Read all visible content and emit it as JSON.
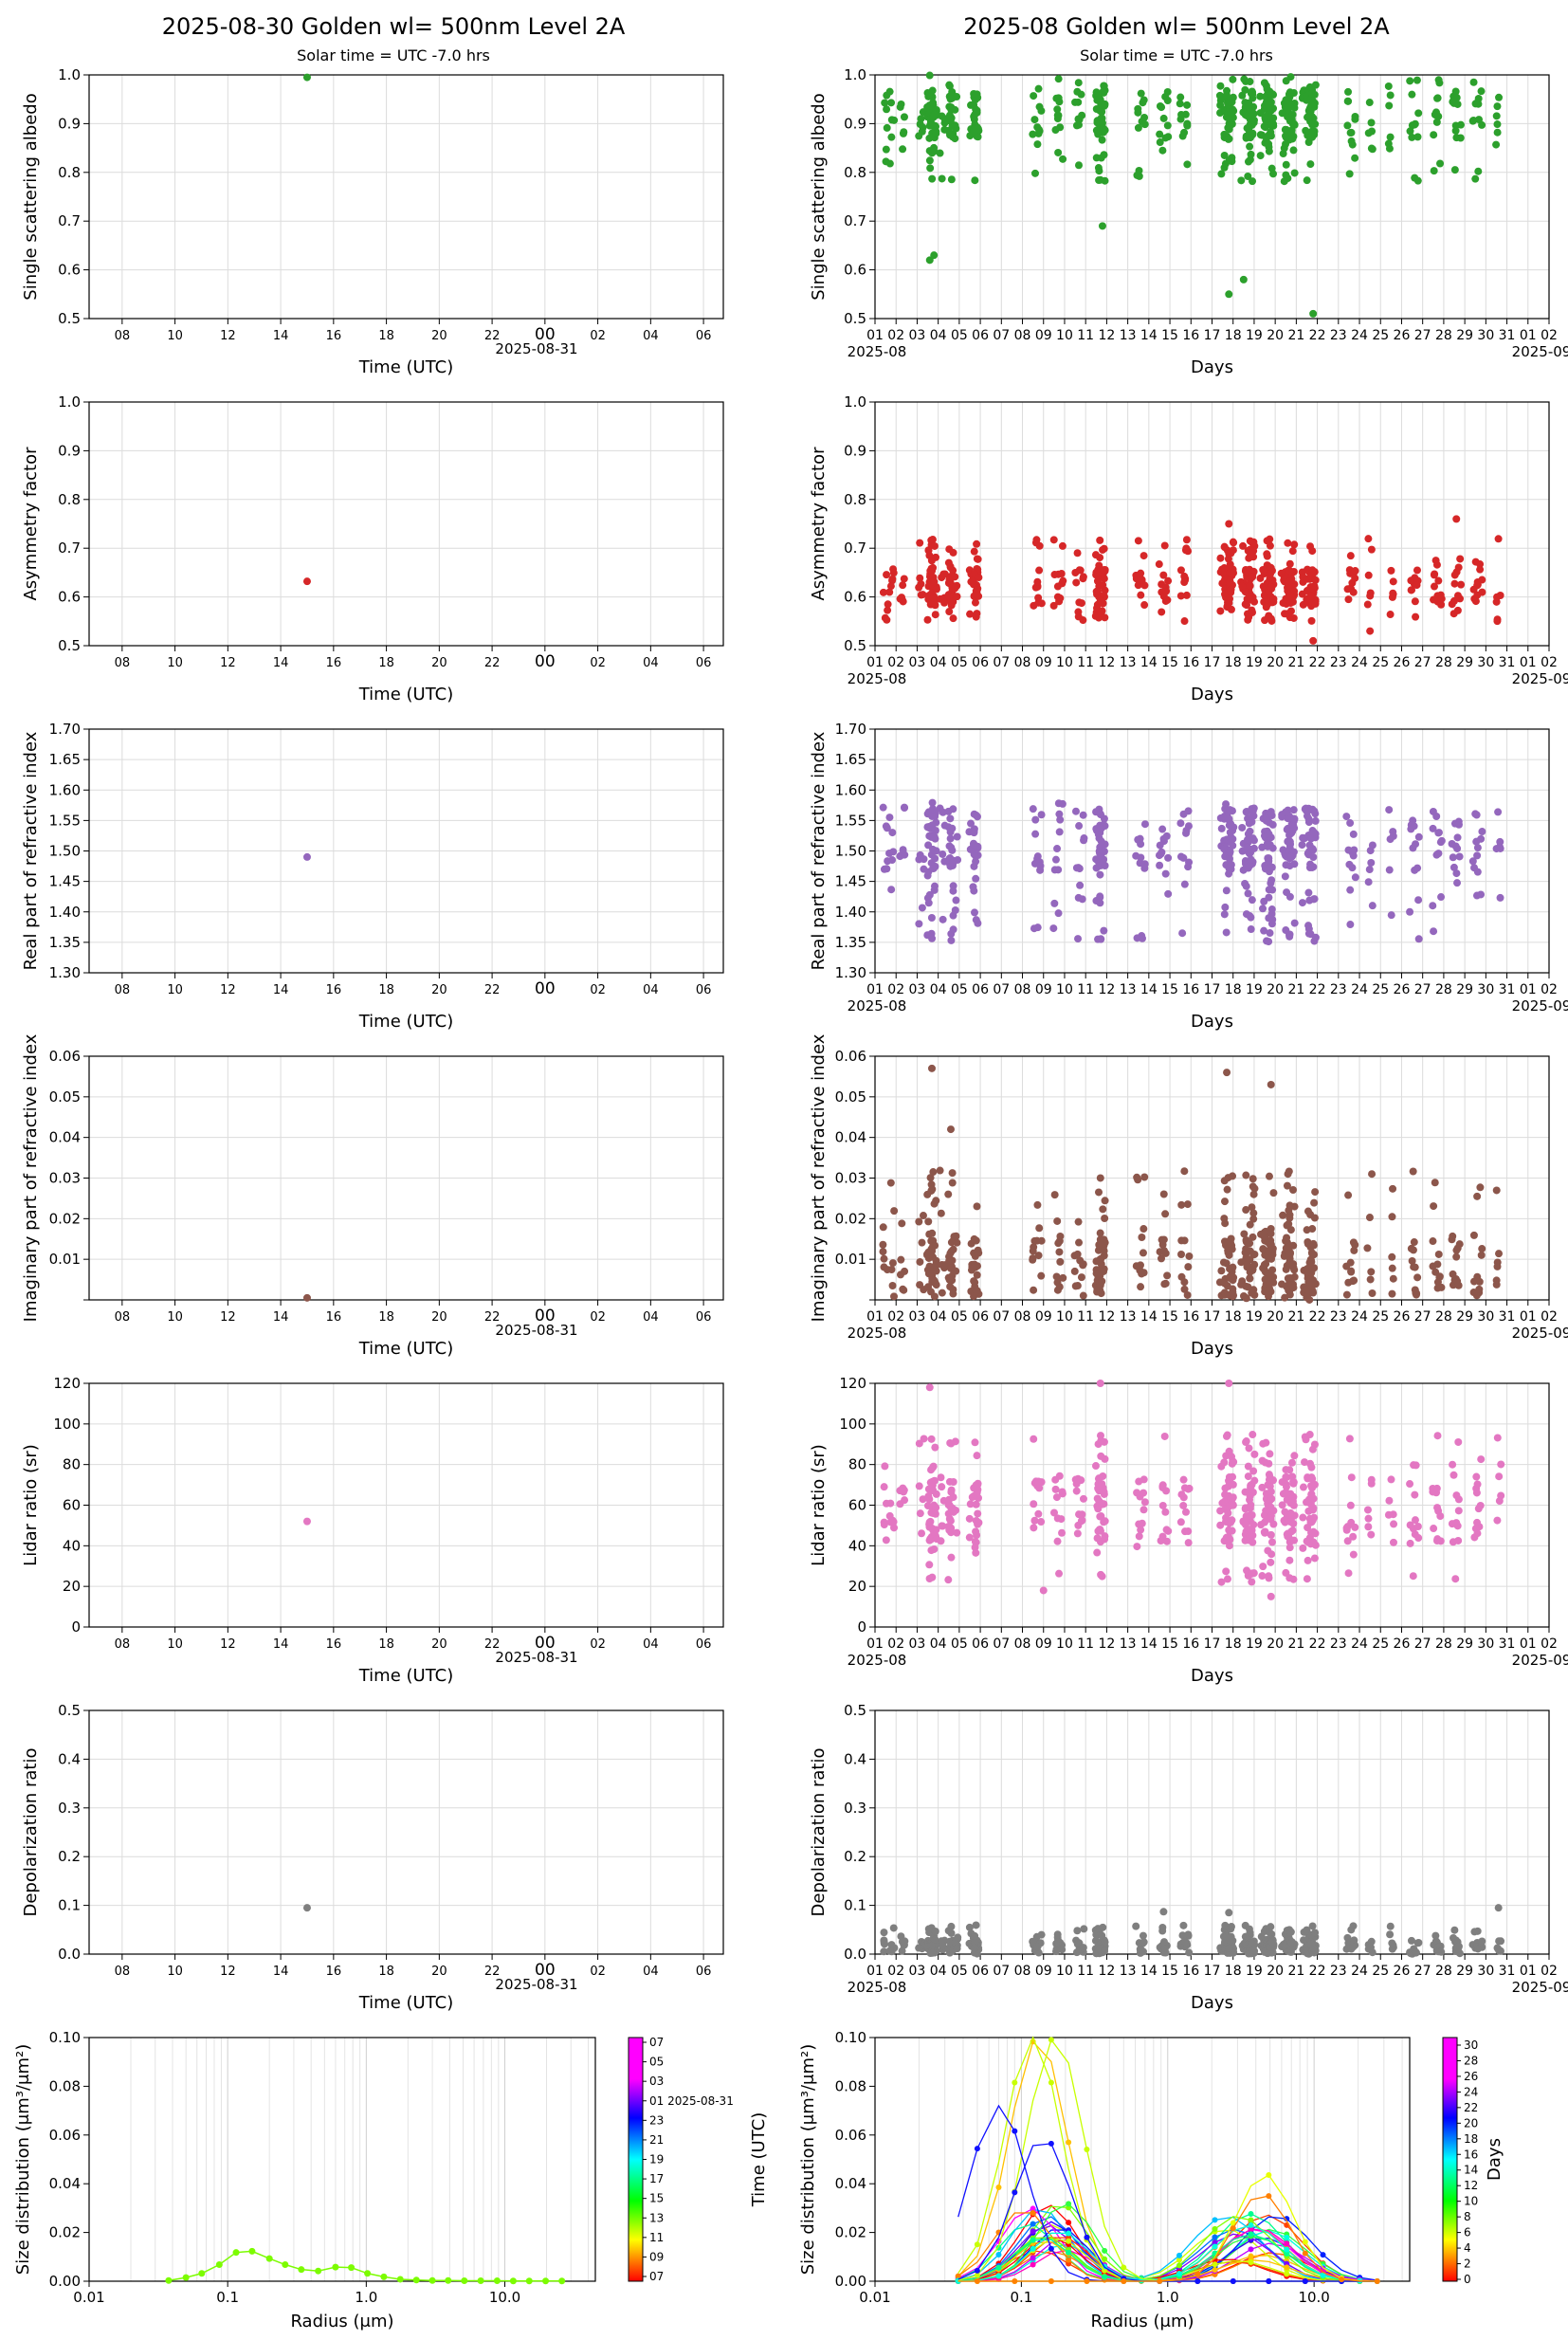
{
  "left_title": "2025-08-30  Golden  wl= 500nm  Level 2A",
  "right_title": "2025-08  Golden  wl= 500nm  Level 2A",
  "subtitle": "Solar time = UTC -7.0 hrs",
  "left_xlabel": "Time (UTC)",
  "right_xlabel": "Days",
  "left_date_label": "2025-08-31",
  "right_start_label": "2025-08",
  "right_end_label": "2025-09",
  "left_hour_ticks": [
    "08",
    "10",
    "12",
    "14",
    "16",
    "18",
    "20",
    "22",
    "00",
    "02",
    "04",
    "06"
  ],
  "right_day_ticks": [
    "01",
    "02",
    "03",
    "04",
    "05",
    "06",
    "07",
    "08",
    "09",
    "10",
    "11",
    "12",
    "13",
    "14",
    "15",
    "16",
    "17",
    "18",
    "19",
    "20",
    "21",
    "22",
    "23",
    "24",
    "25",
    "26",
    "27",
    "28",
    "29",
    "30",
    "31",
    "01",
    "02"
  ],
  "colors": {
    "ssa": "#2ca02c",
    "asym": "#d62728",
    "real": "#9467bd",
    "imag": "#8c564b",
    "lidar": "#e377c2",
    "depol": "#7f7f7f"
  },
  "size_xlabel": "Radius (μm)",
  "size_ylabel": "Size distribution (μm³/μm²)",
  "size_xticks": [
    "0.01",
    "0.1",
    "1.0",
    "10.0"
  ],
  "size_yticks": [
    "0.00",
    "0.02",
    "0.04",
    "0.06",
    "0.08",
    "0.10"
  ],
  "left_cbar_ticks": [
    "07",
    "05",
    "03",
    "01 2025-08-31",
    "23",
    "21",
    "19",
    "17",
    "15",
    "13",
    "11",
    "09",
    "07"
  ],
  "right_cbar_ticks": [
    "30",
    "28",
    "26",
    "24",
    "22",
    "20",
    "18",
    "16",
    "14",
    "12",
    "10",
    "8",
    "6",
    "4",
    "2",
    "0"
  ],
  "right_cbar_label": "Days",
  "right_size_extra_label": "Time (UTC)",
  "chart_data": [
    {
      "id": "ssa",
      "type": "scatter",
      "ylabel": "Single scattering albedo",
      "ylim": [
        0.5,
        1.0
      ],
      "yticks": [
        "0.5",
        "0.6",
        "0.7",
        "0.8",
        "0.9",
        "1.0"
      ],
      "left_points": [
        [
          15.0,
          0.995
        ]
      ],
      "right_summary": "dense clusters per day mostly between 0.85 and 1.0",
      "right_outliers": [
        [
          17.8,
          0.55
        ],
        [
          18.5,
          0.58
        ],
        [
          21.8,
          0.51
        ],
        [
          3.6,
          0.62
        ],
        [
          3.8,
          0.63
        ],
        [
          11.8,
          0.69
        ]
      ]
    },
    {
      "id": "asym",
      "type": "scatter",
      "ylabel": "Asymmetry factor",
      "ylim": [
        0.5,
        1.0
      ],
      "yticks": [
        "0.5",
        "0.6",
        "0.7",
        "0.8",
        "0.9",
        "1.0"
      ],
      "left_points": [
        [
          15.0,
          0.632
        ]
      ],
      "right_summary": "clusters between 0.55 and 0.75",
      "right_outliers": [
        [
          28.6,
          0.76
        ],
        [
          21.8,
          0.51
        ],
        [
          24.5,
          0.53
        ],
        [
          17.8,
          0.75
        ]
      ]
    },
    {
      "id": "real",
      "type": "scatter",
      "ylabel": "Real part of refractive index",
      "ylim": [
        1.3,
        1.7
      ],
      "yticks": [
        "1.30",
        "1.35",
        "1.40",
        "1.45",
        "1.50",
        "1.55",
        "1.60",
        "1.65",
        "1.70"
      ],
      "left_points": [
        [
          15.0,
          1.49
        ]
      ],
      "right_summary": "clusters between 1.35 and 1.58",
      "right_outliers": []
    },
    {
      "id": "imag",
      "type": "scatter",
      "ylabel": "Imaginary part of refractive index",
      "ylim": [
        0.0,
        0.06
      ],
      "yticks": [
        "",
        "0.01",
        "0.02",
        "0.03",
        "0.04",
        "0.05",
        "0.06"
      ],
      "left_points": [
        [
          15.0,
          0.0005
        ]
      ],
      "right_summary": "clusters between 0.0 and 0.035",
      "right_outliers": [
        [
          3.7,
          0.057
        ],
        [
          17.7,
          0.056
        ],
        [
          19.8,
          0.053
        ],
        [
          4.6,
          0.042
        ]
      ]
    },
    {
      "id": "lidar",
      "type": "scatter",
      "ylabel": "Lidar ratio (sr)",
      "ylim": [
        0,
        120
      ],
      "yticks": [
        "0",
        "20",
        "40",
        "60",
        "80",
        "100",
        "120"
      ],
      "left_points": [
        [
          15.0,
          52
        ]
      ],
      "right_summary": "clusters between 20 and 100 sr",
      "right_outliers": [
        [
          3.6,
          118
        ],
        [
          11.7,
          120
        ],
        [
          17.8,
          120
        ],
        [
          19.8,
          15
        ],
        [
          9.0,
          18
        ]
      ]
    },
    {
      "id": "depol",
      "type": "scatter",
      "ylabel": "Depolarization ratio",
      "ylim": [
        0.0,
        0.5
      ],
      "yticks": [
        "0.0",
        "0.1",
        "0.2",
        "0.3",
        "0.4",
        "0.5"
      ],
      "left_points": [
        [
          15.0,
          0.095
        ]
      ],
      "right_summary": "clusters between 0.0 and 0.09",
      "right_outliers": [
        [
          30.6,
          0.095
        ],
        [
          14.7,
          0.087
        ],
        [
          17.8,
          0.085
        ]
      ]
    },
    {
      "id": "size_left",
      "type": "line",
      "xscale": "log",
      "xlim": [
        0.01,
        45
      ],
      "ylim": [
        0,
        0.1
      ],
      "series": [
        {
          "x": [
            0.0375,
            0.05,
            0.065,
            0.087,
            0.115,
            0.15,
            0.2,
            0.26,
            0.34,
            0.45,
            0.6,
            0.78,
            1.02,
            1.34,
            1.76,
            2.3,
            3.0,
            3.9,
            5.1,
            6.7,
            8.8,
            11.5,
            15.0,
            19.7,
            25.8
          ],
          "values": [
            0.0003,
            0.0015,
            0.0032,
            0.0068,
            0.0118,
            0.0123,
            0.0093,
            0.0068,
            0.0048,
            0.0042,
            0.0058,
            0.0056,
            0.0032,
            0.0018,
            0.0008,
            0.0005,
            0.0003,
            0.0003,
            0.0002,
            0.0002,
            0.0002,
            0.0001,
            0.0001,
            0.0001,
            0.0001
          ],
          "color": "#7cfc00"
        }
      ]
    },
    {
      "id": "size_right",
      "type": "line",
      "xscale": "log",
      "xlim": [
        0.01,
        45
      ],
      "ylim": [
        0,
        0.1
      ],
      "note": "many curves colored by day"
    }
  ]
}
